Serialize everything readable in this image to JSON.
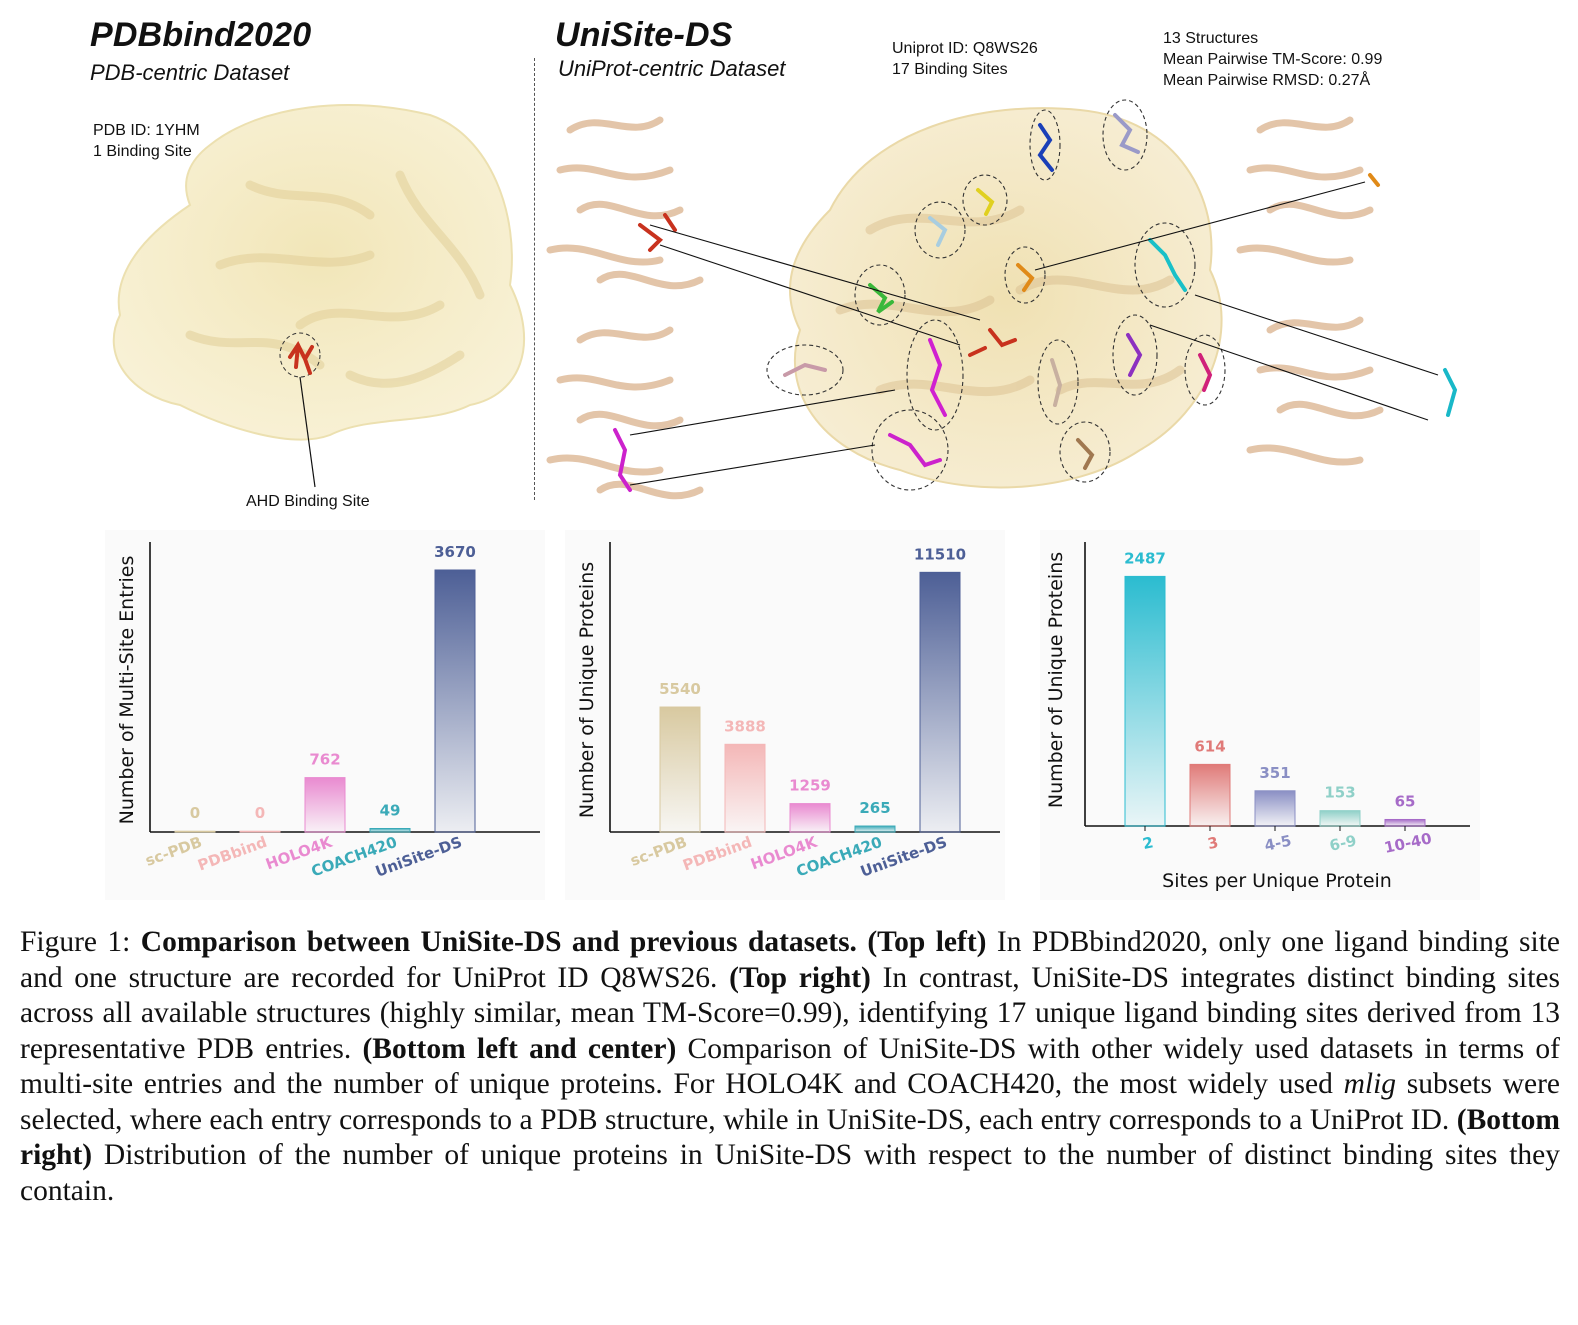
{
  "top_left": {
    "title": "PDBbind2020",
    "subtitle": "PDB-centric Dataset",
    "info": "PDB ID: 1YHM\n1 Binding Site",
    "site_label": "AHD Binding Site"
  },
  "top_right": {
    "title": "UniSite-DS",
    "subtitle": "UniProt-centric Dataset",
    "info_ids": "Uniprot ID: Q8WS26\n17 Binding Sites",
    "info_structs": "13 Structures\nMean Pairwise TM-Score: 0.99\nMean Pairwise RMSD: 0.27Å"
  },
  "colors": {
    "protein_surface": "#f3e7b8",
    "helix": "#dcb58f",
    "ligand_red": "#c8321e",
    "ligand_magenta": "#cc22cc",
    "ligand_cyan": "#19b8c8"
  },
  "chart_data": [
    {
      "type": "bar",
      "ylabel": "Number of Multi-Site Entries",
      "categories": [
        "sc-PDB",
        "PDBbind",
        "HOLO4K",
        "COACH420",
        "UniSite-DS"
      ],
      "values": [
        0,
        0,
        762,
        49,
        3670
      ],
      "value_labels": [
        "0",
        "0",
        "762",
        "49",
        "3670"
      ],
      "colors": [
        "#d8c9a0",
        "#f4b7b7",
        "#e98ad0",
        "#3aaab8",
        "#4d5f96"
      ],
      "ylim": [
        0,
        3950
      ]
    },
    {
      "type": "bar",
      "ylabel": "Number of Unique Proteins",
      "categories": [
        "sc-PDB",
        "PDBbind",
        "HOLO4K",
        "COACH420",
        "UniSite-DS"
      ],
      "values": [
        5540,
        3888,
        1259,
        265,
        11510
      ],
      "value_labels": [
        "5540",
        "3888",
        "1259",
        "265",
        "11510"
      ],
      "colors": [
        "#d8c9a0",
        "#f4b7b7",
        "#e98ad0",
        "#3aaab8",
        "#4d5f96"
      ],
      "ylim": [
        0,
        12500
      ]
    },
    {
      "type": "bar",
      "ylabel": "Number of Unique Proteins",
      "xlabel": "Sites per Unique Protein",
      "categories": [
        "2",
        "3",
        "4-5",
        "6-9",
        "10-40"
      ],
      "values": [
        2487,
        614,
        351,
        153,
        65
      ],
      "value_labels": [
        "2487",
        "614",
        "351",
        "153",
        "65"
      ],
      "colors": [
        "#2bbcd0",
        "#e07a78",
        "#8a8fc4",
        "#8fd0c8",
        "#a66bc8"
      ],
      "ylim": [
        0,
        2750
      ]
    }
  ],
  "caption": {
    "fig": "Figure 1:",
    "bold_title": "Comparison between UniSite-DS and previous datasets.",
    "tl_head": "(Top left)",
    "tl_text": "In PDBbind2020, only one ligand binding site and one structure are recorded for UniProt ID Q8WS26.",
    "tr_head": "(Top right)",
    "tr_text": "In contrast, UniSite-DS integrates distinct binding sites across all available structures (highly similar, mean TM-Score=0.99), identifying 17 unique ligand binding sites derived from 13 representative PDB entries.",
    "blc_head": "(Bottom left and center)",
    "blc_text_1": "Comparison of UniSite-DS with other widely used datasets in terms of multi-site entries and the number of unique proteins. For HOLO4K and COACH420, the most widely used",
    "blc_italic": "mlig",
    "blc_text_2": "subsets were selected, where each entry corresponds to a PDB structure, while in UniSite-DS, each entry corresponds to a UniProt ID.",
    "br_head": "(Bottom right)",
    "br_text": "Distribution of the number of unique proteins in UniSite-DS with respect to the number of distinct binding sites they contain."
  }
}
